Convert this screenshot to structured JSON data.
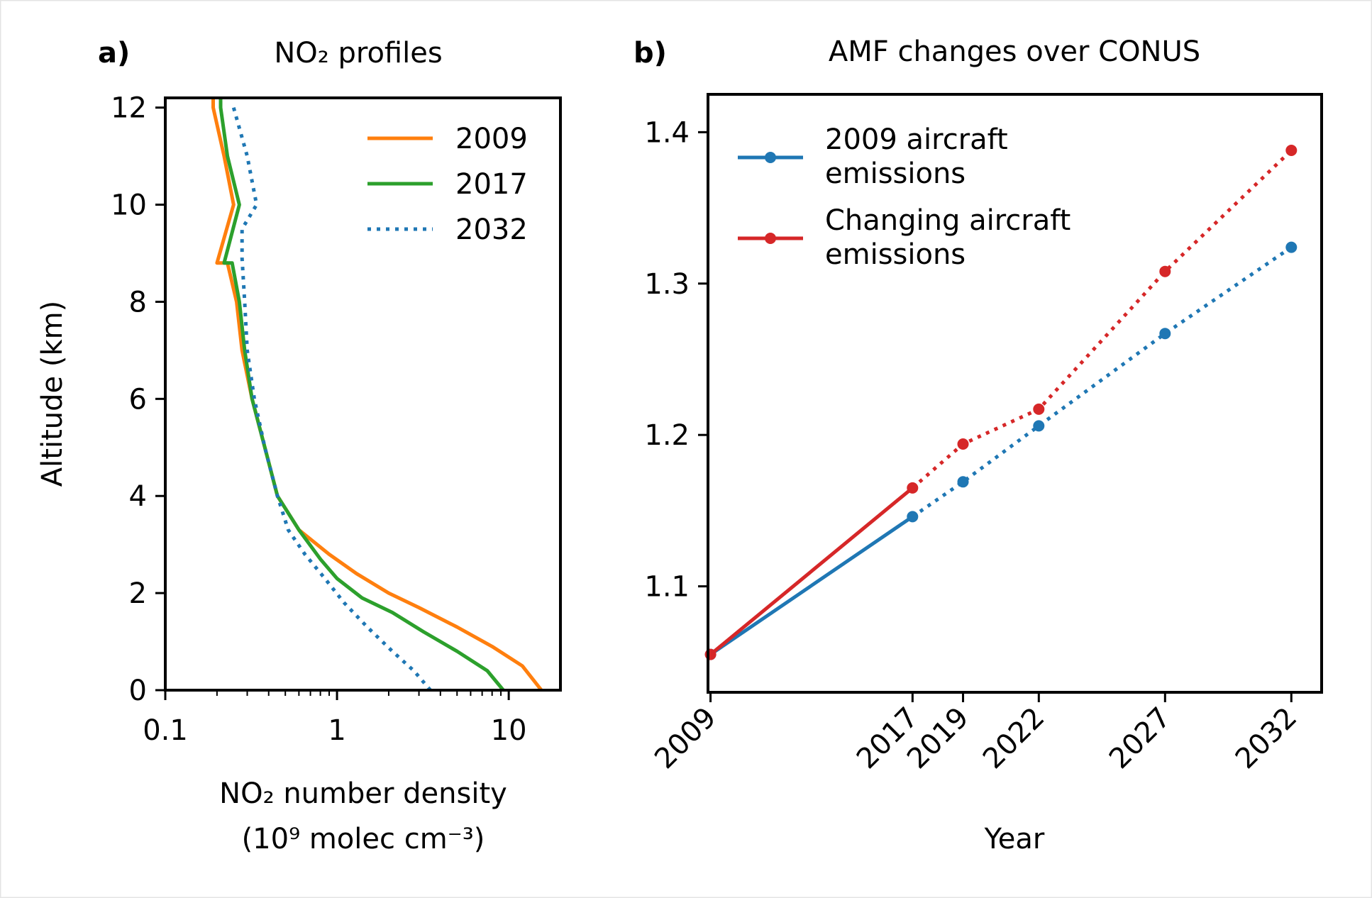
{
  "chart_data": [
    {
      "panel_label": "a)",
      "title": "NO₂ profiles",
      "type": "line",
      "xlabel": "NO₂ number density",
      "xlabel_line2": "(10⁹ molec cm⁻³)",
      "ylabel": "Altitude (km)",
      "xscale": "log",
      "xlim": [
        0.1,
        20
      ],
      "ylim": [
        0,
        12.2
      ],
      "xticks": [
        0.1,
        1,
        10
      ],
      "xtick_labels": [
        "0.1",
        "1",
        "10"
      ],
      "yticks": [
        0,
        2,
        4,
        6,
        8,
        10,
        12
      ],
      "ytick_labels": [
        "0",
        "2",
        "4",
        "6",
        "8",
        "10",
        "12"
      ],
      "legend_position": "top-right",
      "grid": false,
      "series": [
        {
          "name": "2009",
          "color": "#ff7f0e",
          "style": "solid",
          "x": [
            15.5,
            12,
            8,
            5,
            3,
            2,
            1.3,
            0.9,
            0.6,
            0.45,
            0.38,
            0.32,
            0.28,
            0.26,
            0.23,
            0.2,
            0.25,
            0.22,
            0.19,
            0.19
          ],
          "y": [
            0,
            0.5,
            0.9,
            1.3,
            1.7,
            2.0,
            2.4,
            2.8,
            3.3,
            4.0,
            5.0,
            6.0,
            7.0,
            8.0,
            8.8,
            8.8,
            10.0,
            11.0,
            12.0,
            12.2
          ]
        },
        {
          "name": "2017",
          "color": "#2ca02c",
          "style": "solid",
          "x": [
            9.3,
            7.5,
            5,
            3.2,
            2.1,
            1.4,
            1.0,
            0.8,
            0.6,
            0.45,
            0.38,
            0.32,
            0.29,
            0.27,
            0.245,
            0.22,
            0.27,
            0.23,
            0.21,
            0.21
          ],
          "y": [
            0,
            0.4,
            0.8,
            1.2,
            1.6,
            1.9,
            2.3,
            2.7,
            3.3,
            4.0,
            5.0,
            6.0,
            7.0,
            8.0,
            8.8,
            8.8,
            10.0,
            11.0,
            12.0,
            12.2
          ]
        },
        {
          "name": "2032",
          "color": "#1f77b4",
          "style": "dotted",
          "x": [
            3.5,
            2.8,
            2.1,
            1.5,
            1.1,
            0.85,
            0.65,
            0.52,
            0.45,
            0.38,
            0.33,
            0.3,
            0.29,
            0.28,
            0.28,
            0.34,
            0.3,
            0.25
          ],
          "y": [
            0,
            0.4,
            0.8,
            1.3,
            1.8,
            2.3,
            2.8,
            3.3,
            4.0,
            5.0,
            6.0,
            7.0,
            8.0,
            8.9,
            9.5,
            10.0,
            11.0,
            12.0
          ]
        }
      ]
    },
    {
      "panel_label": "b)",
      "title": "AMF changes over CONUS",
      "type": "line",
      "xlabel": "Year",
      "ylabel": "",
      "xlim": [
        2008.9,
        2033.2
      ],
      "ylim": [
        1.03,
        1.425
      ],
      "xticks": [
        2009,
        2017,
        2019,
        2022,
        2027,
        2032
      ],
      "xtick_labels": [
        "2009",
        "2017",
        "2019",
        "2022",
        "2027",
        "2032"
      ],
      "yticks": [
        1.1,
        1.2,
        1.3,
        1.4
      ],
      "ytick_labels": [
        "1.1",
        "1.2",
        "1.3",
        "1.4"
      ],
      "legend_position": "top-left",
      "grid": false,
      "solid_until": 2017,
      "series": [
        {
          "name": "2009 aircraft\nemissions",
          "legend_lines": [
            "2009 aircraft",
            "emissions"
          ],
          "color": "#1f77b4",
          "x": [
            2009,
            2017,
            2019,
            2022,
            2027,
            2032
          ],
          "y": [
            1.055,
            1.146,
            1.169,
            1.206,
            1.267,
            1.324
          ]
        },
        {
          "name": "Changing aircraft\nemissions",
          "legend_lines": [
            "Changing aircraft",
            "emissions"
          ],
          "color": "#d62728",
          "x": [
            2009,
            2017,
            2019,
            2022,
            2027,
            2032
          ],
          "y": [
            1.055,
            1.165,
            1.194,
            1.217,
            1.308,
            1.388
          ]
        }
      ]
    }
  ]
}
